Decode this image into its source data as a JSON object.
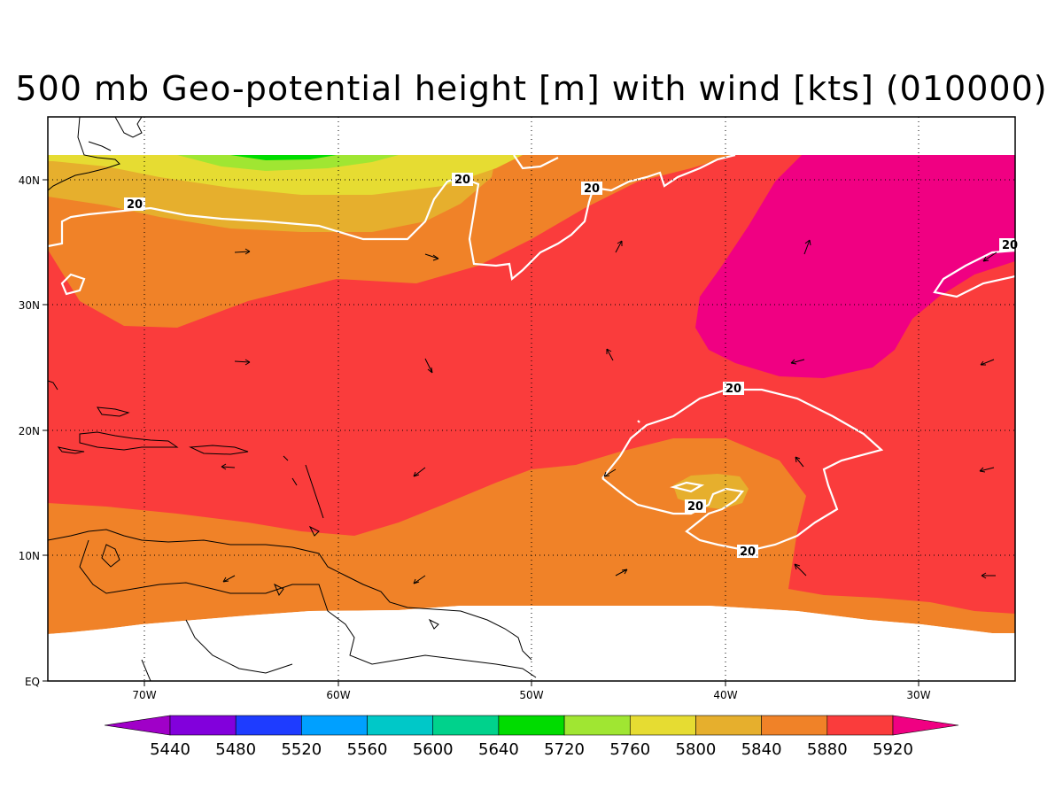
{
  "title": "500 mb Geo-potential height [m] with wind [kts] (010000)",
  "map": {
    "lon_ticks": [
      "70W",
      "60W",
      "50W",
      "40W",
      "30W"
    ],
    "lat_ticks": [
      "40N",
      "30N",
      "20N",
      "10N",
      "EQ"
    ],
    "lon_range": [
      -75,
      -25
    ],
    "lat_range": [
      0,
      45
    ],
    "grid": "dotted"
  },
  "wind_contour_label": "20",
  "colorbar": {
    "labels": [
      "5440",
      "5480",
      "5520",
      "5560",
      "5600",
      "5640",
      "5720",
      "5760",
      "5800",
      "5840",
      "5880",
      "5920"
    ],
    "colors": [
      "#a000c8",
      "#8200dc",
      "#1e3cff",
      "#00a0ff",
      "#00c8c8",
      "#00d28c",
      "#00dc00",
      "#a0e632",
      "#e6dc32",
      "#e6af2d",
      "#f08228",
      "#fa3c3c",
      "#f00082"
    ]
  }
}
